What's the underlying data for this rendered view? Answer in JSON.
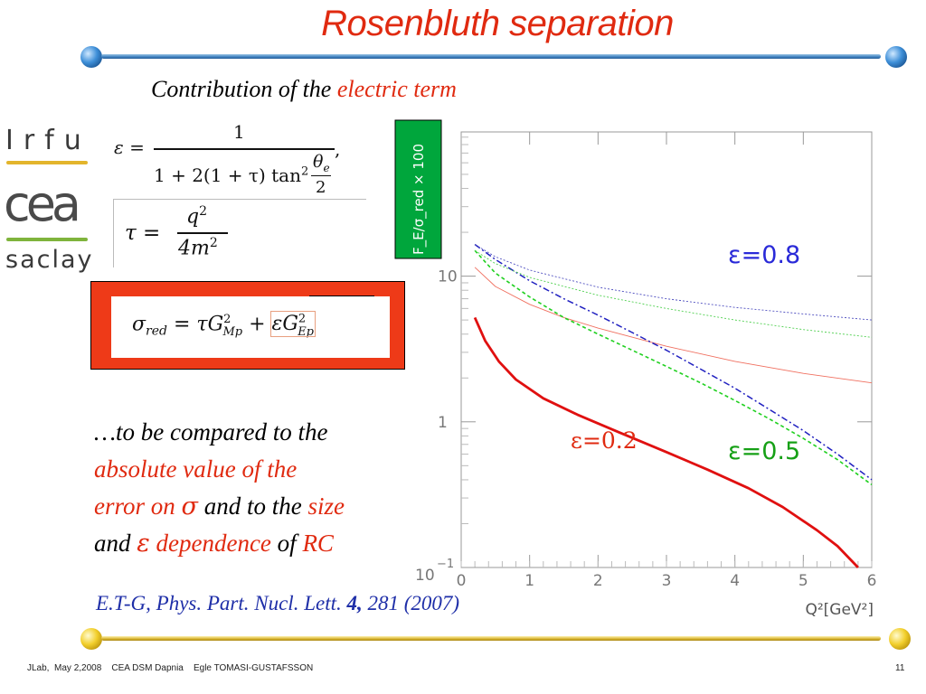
{
  "slide": {
    "title": "Rosenbluth separation",
    "subtitle_pre": "Contribution of the ",
    "subtitle_red": "electric term",
    "logos": {
      "irfu": "Irfu",
      "cea": "cea",
      "saclay": "saclay"
    },
    "formulas": {
      "epsilon_lhs": "ε =",
      "epsilon_num": "1",
      "epsilon_den": "1 + 2(1 + τ) tan",
      "epsilon_theta": "θ",
      "epsilon_theta_sub": "e",
      "epsilon_half": "2",
      "tau_lhs": "τ =",
      "tau_num": "q",
      "tau_den": "4m",
      "sigma_lhs": "σ",
      "sigma_sub": "red",
      "sigma_mid": "= τG",
      "sigma_gmp_sub": "Mp",
      "sigma_plus": "+",
      "sigma_eps": "εG",
      "sigma_gep_sub": "Ep",
      "sq": "2"
    },
    "compare": {
      "l1": "…to be compared to the",
      "l2": "absolute value of  the",
      "l3a": "error on ",
      "l3sym": "σ",
      "l3b": " and to the ",
      "l3c": "size",
      "l4a": "and ",
      "l4sym": "ε",
      "l4b": " dependence",
      "l4c": " of ",
      "l4d": "RC"
    },
    "citation": {
      "a": "E.T-G, Phys. Part. Nucl. Lett. ",
      "b": "4,",
      "c": " 281 (2007)"
    },
    "footer": "JLab,  May 2,2008    CEA DSM Dapnia    Egle TOMASI-GUSTAFSSON",
    "page_number": "11"
  },
  "chart_data": {
    "type": "line",
    "ylabel": "F_E/σ_red × 100",
    "xlabel": "Q²[GeV²]",
    "xlim": [
      0,
      6
    ],
    "ylim_log10": [
      -1,
      1.99
    ],
    "y_scale": "log",
    "x_ticks": [
      "0",
      "1",
      "2",
      "3",
      "4",
      "5",
      "6"
    ],
    "y_ticks": [
      {
        "value": 0.1,
        "label": "10",
        "exp": "−1"
      },
      {
        "value": 1,
        "label": "1"
      },
      {
        "value": 10,
        "label": "10"
      }
    ],
    "annotations": [
      {
        "text": "ε=0.8",
        "color": "#2a2ad8"
      },
      {
        "text": "ε=0.2",
        "color": "#e02a10"
      },
      {
        "text": "ε=0.5",
        "color": "#16a016"
      }
    ],
    "series": [
      {
        "style": "solid-thick",
        "color": "#e01010",
        "x": [
          0.2,
          0.35,
          0.55,
          0.8,
          1.2,
          1.7,
          2.3,
          3.0,
          3.6,
          4.2,
          4.7,
          5.2,
          5.5,
          5.8
        ],
        "y": [
          5.2,
          3.6,
          2.6,
          1.95,
          1.45,
          1.12,
          0.85,
          0.62,
          0.47,
          0.35,
          0.26,
          0.18,
          0.14,
          0.1
        ]
      },
      {
        "style": "solid-thin",
        "color": "#f07060",
        "x": [
          0.2,
          0.5,
          1.0,
          1.5,
          2.0,
          3.0,
          4.0,
          5.0,
          6.0
        ],
        "y": [
          11.5,
          8.5,
          6.4,
          5.2,
          4.4,
          3.3,
          2.6,
          2.15,
          1.85
        ]
      },
      {
        "style": "dashdot",
        "color": "#2020c0",
        "x": [
          0.2,
          0.5,
          1.0,
          1.5,
          2.0,
          2.5,
          3.0,
          3.5,
          4.0,
          4.5,
          5.0,
          5.5,
          6.0
        ],
        "y": [
          16.5,
          13.0,
          9.3,
          7.0,
          5.4,
          4.1,
          3.1,
          2.3,
          1.7,
          1.22,
          0.87,
          0.6,
          0.4
        ]
      },
      {
        "style": "dotted-thin",
        "color": "#5050c0",
        "x": [
          0.2,
          0.5,
          1.0,
          2.0,
          3.0,
          4.0,
          5.0,
          6.0
        ],
        "y": [
          16.5,
          13.6,
          11.0,
          8.4,
          7.0,
          6.1,
          5.5,
          5.0
        ]
      },
      {
        "style": "dashed",
        "color": "#20d020",
        "x": [
          0.2,
          0.5,
          1.0,
          1.5,
          2.0,
          2.5,
          3.0,
          3.5,
          4.0,
          4.5,
          5.0,
          5.5,
          6.0
        ],
        "y": [
          15.0,
          10.5,
          7.2,
          5.2,
          4.0,
          3.1,
          2.4,
          1.85,
          1.4,
          1.05,
          0.77,
          0.55,
          0.37
        ]
      },
      {
        "style": "dotted-thin",
        "color": "#50d050",
        "x": [
          0.2,
          0.5,
          1.0,
          2.0,
          3.0,
          4.0,
          5.0,
          6.0
        ],
        "y": [
          15.0,
          12.2,
          9.8,
          7.4,
          6.0,
          5.0,
          4.3,
          3.8
        ]
      }
    ]
  }
}
